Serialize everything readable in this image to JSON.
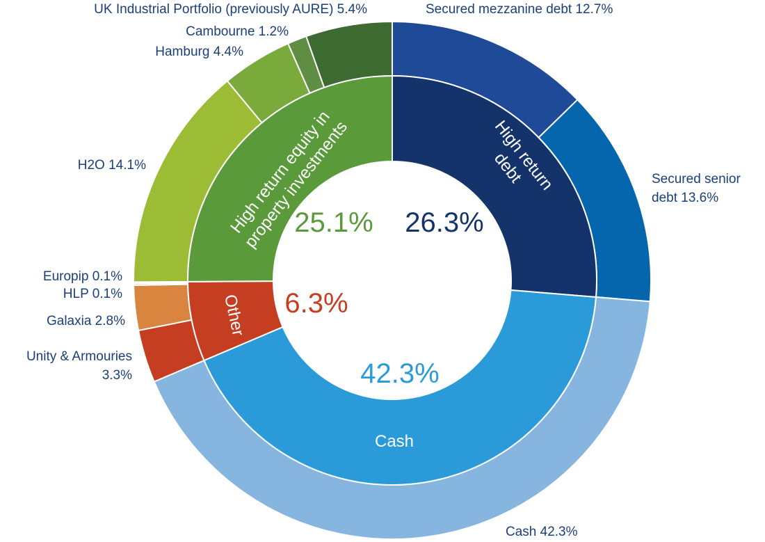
{
  "chart_data": {
    "type": "pie",
    "variant": "nested-donut",
    "inner_ring": [
      {
        "label_lines": [
          "High return",
          "debt"
        ],
        "value": 26.3,
        "value_label": "26.3%",
        "color": "#14336b",
        "pct_color": "#14336b"
      },
      {
        "label_lines": [
          "Cash"
        ],
        "value": 42.3,
        "value_label": "42.3%",
        "color": "#2a9bd8",
        "pct_color": "#2a9bd8"
      },
      {
        "label_lines": [
          "Other"
        ],
        "value": 6.3,
        "value_label": "6.3%",
        "color": "#c63e22",
        "pct_color": "#c63e22"
      },
      {
        "label_lines": [
          "High return equity in",
          "property investments"
        ],
        "value": 25.1,
        "value_label": "25.1%",
        "color": "#5a9a3a",
        "pct_color": "#5a9a3a"
      }
    ],
    "outer_ring": [
      {
        "label_lines": [
          "Secured mezzanine debt 12.7%"
        ],
        "value": 12.7,
        "color": "#1f4a97"
      },
      {
        "label_lines": [
          "Secured senior",
          "debt 13.6%"
        ],
        "value": 13.6,
        "color": "#0565ad"
      },
      {
        "label_lines": [
          "Cash 42.3%"
        ],
        "value": 42.3,
        "color": "#86b6e0"
      },
      {
        "label_lines": [
          "Unity & Armouries",
          "3.3%"
        ],
        "value": 3.3,
        "color": "#c63e22"
      },
      {
        "label_lines": [
          "Galaxia 2.8%"
        ],
        "value": 2.8,
        "color": "#d9843f"
      },
      {
        "label_lines": [
          "HLP 0.1%"
        ],
        "value": 0.1,
        "color": "#e9a67a"
      },
      {
        "label_lines": [
          "Europip 0.1%"
        ],
        "value": 0.1,
        "color": "#f2c9a8"
      },
      {
        "label_lines": [
          "H2O 14.1%"
        ],
        "value": 14.1,
        "color": "#9dbc35"
      },
      {
        "label_lines": [
          "Hamburg 4.4%"
        ],
        "value": 4.4,
        "color": "#7aa93c"
      },
      {
        "label_lines": [
          "Cambourne 1.2%"
        ],
        "value": 1.2,
        "color": "#5f8d44"
      },
      {
        "label_lines": [
          "UK Industrial Portfolio (previously AURE) 5.4%"
        ],
        "value": 5.4,
        "color": "#3c6a30"
      }
    ]
  }
}
